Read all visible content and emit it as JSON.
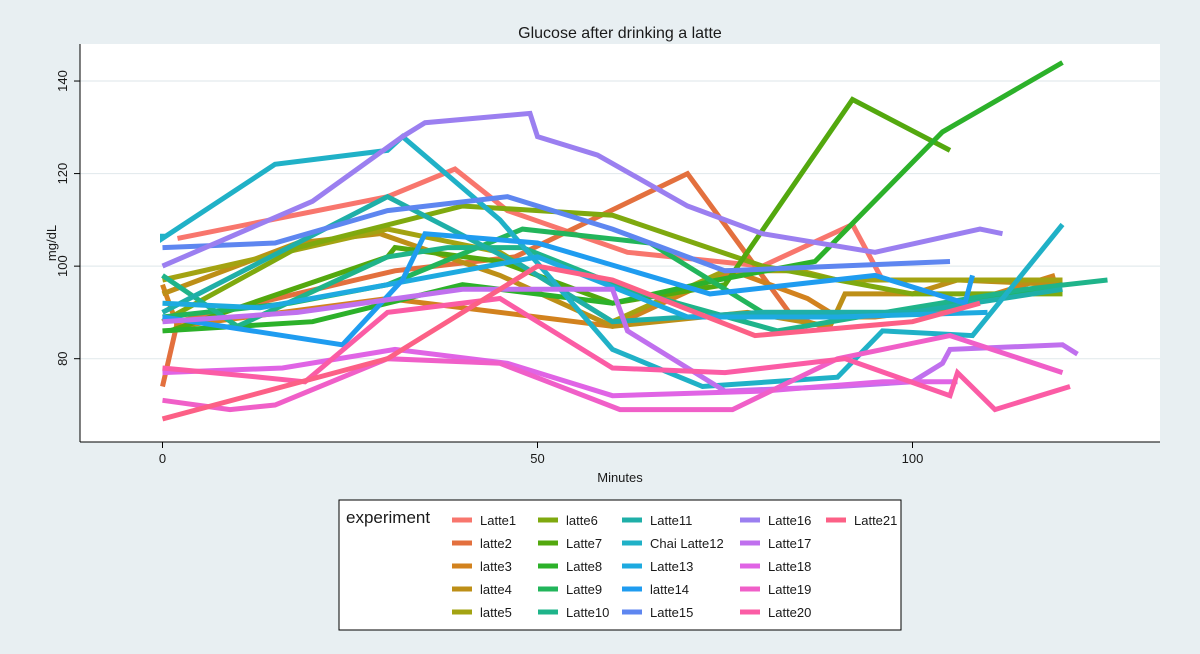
{
  "chart_data": {
    "type": "line",
    "title": "Glucose after drinking a latte",
    "xlabel": "Minutes",
    "ylabel": "mg/dL",
    "xlim": [
      -11,
      133
    ],
    "ylim": [
      62,
      148
    ],
    "xticks": [
      0,
      50,
      100
    ],
    "yticks": [
      80,
      100,
      120,
      140
    ],
    "grid": "horizontal",
    "legend": {
      "title": "experiment",
      "placement": "bottom"
    },
    "series": [
      {
        "name": "Latte1",
        "color": "#f8766d",
        "points": [
          [
            2,
            106
          ],
          [
            30,
            115
          ],
          [
            39,
            121
          ],
          [
            46,
            112
          ],
          [
            62,
            103
          ],
          [
            80,
            100
          ],
          [
            92,
            109
          ],
          [
            96,
            97
          ]
        ]
      },
      {
        "name": "latte2",
        "color": "#e3703e",
        "points": [
          [
            0,
            74
          ],
          [
            2,
            88
          ],
          [
            31,
            99
          ],
          [
            47,
            102
          ],
          [
            70,
            120
          ],
          [
            84,
            89
          ],
          [
            88,
            87
          ]
        ]
      },
      {
        "name": "latte3",
        "color": "#d2821e",
        "points": [
          [
            0,
            96
          ],
          [
            2,
            87
          ],
          [
            30,
            93
          ],
          [
            60,
            87
          ],
          [
            76,
            99
          ],
          [
            86,
            93
          ],
          [
            90,
            89
          ],
          [
            95,
            89
          ],
          [
            105,
            91
          ],
          [
            119,
            98
          ]
        ]
      },
      {
        "name": "latte4",
        "color": "#bd8f17",
        "points": [
          [
            0,
            94
          ],
          [
            18,
            105
          ],
          [
            29,
            107
          ],
          [
            45,
            98
          ],
          [
            60,
            87
          ],
          [
            78,
            90
          ],
          [
            89,
            87
          ],
          [
            91,
            94
          ],
          [
            100,
            94
          ],
          [
            106,
            97
          ],
          [
            120,
            96
          ]
        ]
      },
      {
        "name": "latte5",
        "color": "#a3a312",
        "points": [
          [
            0,
            97
          ],
          [
            30,
            108
          ],
          [
            45,
            103
          ],
          [
            60,
            88
          ],
          [
            75,
            99
          ],
          [
            85,
            99
          ],
          [
            90,
            97
          ],
          [
            120,
            97
          ]
        ]
      },
      {
        "name": "latte6",
        "color": "#7fa90f",
        "points": [
          [
            0,
            88
          ],
          [
            18,
            104
          ],
          [
            40,
            113
          ],
          [
            60,
            111
          ],
          [
            80,
            100
          ],
          [
            100,
            94
          ],
          [
            120,
            94
          ]
        ]
      },
      {
        "name": "Latte7",
        "color": "#53a80e",
        "points": [
          [
            1,
            86
          ],
          [
            30,
            102
          ],
          [
            31,
            104
          ],
          [
            45,
            101
          ],
          [
            60,
            92
          ],
          [
            75,
            96
          ],
          [
            92,
            136
          ],
          [
            105,
            125
          ]
        ]
      },
      {
        "name": "Latte8",
        "color": "#2cb12a",
        "points": [
          [
            0,
            86
          ],
          [
            20,
            88
          ],
          [
            40,
            96
          ],
          [
            60,
            92
          ],
          [
            74,
            97
          ],
          [
            87,
            101
          ],
          [
            104,
            129
          ],
          [
            120,
            144
          ]
        ]
      },
      {
        "name": "Latte9",
        "color": "#22b55b",
        "points": [
          [
            0,
            89
          ],
          [
            17,
            92
          ],
          [
            30,
            96
          ],
          [
            48,
            108
          ],
          [
            65,
            105
          ],
          [
            80,
            90
          ],
          [
            100,
            90
          ],
          [
            120,
            96
          ]
        ]
      },
      {
        "name": "Latte10",
        "color": "#1fb48a",
        "points": [
          [
            0,
            98
          ],
          [
            10,
            87
          ],
          [
            30,
            102
          ],
          [
            38,
            104
          ],
          [
            48,
            104
          ],
          [
            62,
            95
          ],
          [
            82,
            86
          ],
          [
            100,
            91
          ],
          [
            115,
            95
          ],
          [
            126,
            97
          ]
        ]
      },
      {
        "name": "Latte11",
        "color": "#1fafa8",
        "points": [
          [
            0,
            90
          ],
          [
            30,
            115
          ],
          [
            48,
            100
          ],
          [
            60,
            88
          ],
          [
            80,
            90
          ],
          [
            100,
            90
          ],
          [
            120,
            95
          ]
        ]
      },
      {
        "name": "Chai Latte12",
        "color": "#20b1c7",
        "points": [
          [
            0,
            107
          ],
          [
            0,
            106
          ],
          [
            15,
            122
          ],
          [
            30,
            125
          ],
          [
            32,
            128
          ],
          [
            45,
            110
          ],
          [
            60,
            82
          ],
          [
            72,
            74
          ],
          [
            90,
            76
          ],
          [
            96,
            86
          ],
          [
            108,
            85
          ],
          [
            120,
            109
          ]
        ]
      },
      {
        "name": "Latte13",
        "color": "#1eaae0",
        "points": [
          [
            0,
            92
          ],
          [
            13,
            91
          ],
          [
            30,
            96
          ],
          [
            50,
            102
          ],
          [
            70,
            89
          ],
          [
            90,
            89
          ],
          [
            110,
            90
          ]
        ]
      },
      {
        "name": "latte14",
        "color": "#1f9cf0",
        "points": [
          [
            0,
            89
          ],
          [
            24,
            83
          ],
          [
            32,
            97
          ],
          [
            35,
            107
          ],
          [
            50,
            105
          ],
          [
            73,
            94
          ],
          [
            95,
            98
          ],
          [
            107,
            92
          ],
          [
            108,
            98
          ]
        ]
      },
      {
        "name": "Latte15",
        "color": "#5e86f0",
        "points": [
          [
            0,
            104
          ],
          [
            15,
            105
          ],
          [
            30,
            112
          ],
          [
            46,
            115
          ],
          [
            60,
            108
          ],
          [
            75,
            99
          ],
          [
            90,
            100
          ],
          [
            105,
            101
          ]
        ]
      },
      {
        "name": "Latte16",
        "color": "#9b7ff0",
        "points": [
          [
            0,
            100
          ],
          [
            20,
            114
          ],
          [
            32,
            128
          ],
          [
            35,
            131
          ],
          [
            49,
            133
          ],
          [
            50,
            128
          ],
          [
            58,
            124
          ],
          [
            70,
            113
          ],
          [
            80,
            107
          ],
          [
            95,
            103
          ],
          [
            109,
            108
          ],
          [
            112,
            107
          ]
        ]
      },
      {
        "name": "Latte17",
        "color": "#c070ee",
        "points": [
          [
            0,
            88
          ],
          [
            18,
            90
          ],
          [
            40,
            95
          ],
          [
            60,
            95
          ],
          [
            62,
            86
          ],
          [
            70,
            78
          ],
          [
            75,
            73
          ],
          [
            90,
            74
          ],
          [
            100,
            75
          ],
          [
            104,
            79
          ],
          [
            105,
            82
          ],
          [
            120,
            83
          ],
          [
            122,
            81
          ]
        ]
      },
      {
        "name": "Latte18",
        "color": "#e064e5",
        "points": [
          [
            0,
            77
          ],
          [
            16,
            78
          ],
          [
            31,
            82
          ],
          [
            46,
            79
          ],
          [
            60,
            72
          ],
          [
            80,
            73
          ],
          [
            96,
            75
          ],
          [
            106,
            75
          ]
        ]
      },
      {
        "name": "Latte19",
        "color": "#f05fc8",
        "points": [
          [
            0,
            71
          ],
          [
            9,
            69
          ],
          [
            15,
            70
          ],
          [
            30,
            80
          ],
          [
            45,
            79
          ],
          [
            61,
            69
          ],
          [
            76,
            69
          ],
          [
            90,
            80
          ],
          [
            105,
            85
          ],
          [
            120,
            77
          ]
        ]
      },
      {
        "name": "Latte20",
        "color": "#fb5ca5",
        "points": [
          [
            0,
            78
          ],
          [
            13,
            76
          ],
          [
            19,
            75
          ],
          [
            30,
            90
          ],
          [
            45,
            93
          ],
          [
            60,
            78
          ],
          [
            75,
            77
          ],
          [
            91,
            80
          ],
          [
            105,
            72
          ],
          [
            106,
            77
          ],
          [
            111,
            69
          ],
          [
            117,
            72
          ],
          [
            121,
            74
          ]
        ]
      },
      {
        "name": "Latte21",
        "color": "#fc6086",
        "points": [
          [
            0,
            67
          ],
          [
            30,
            80
          ],
          [
            50,
            100
          ],
          [
            60,
            97
          ],
          [
            79,
            85
          ],
          [
            100,
            88
          ],
          [
            109,
            92
          ]
        ]
      }
    ]
  }
}
